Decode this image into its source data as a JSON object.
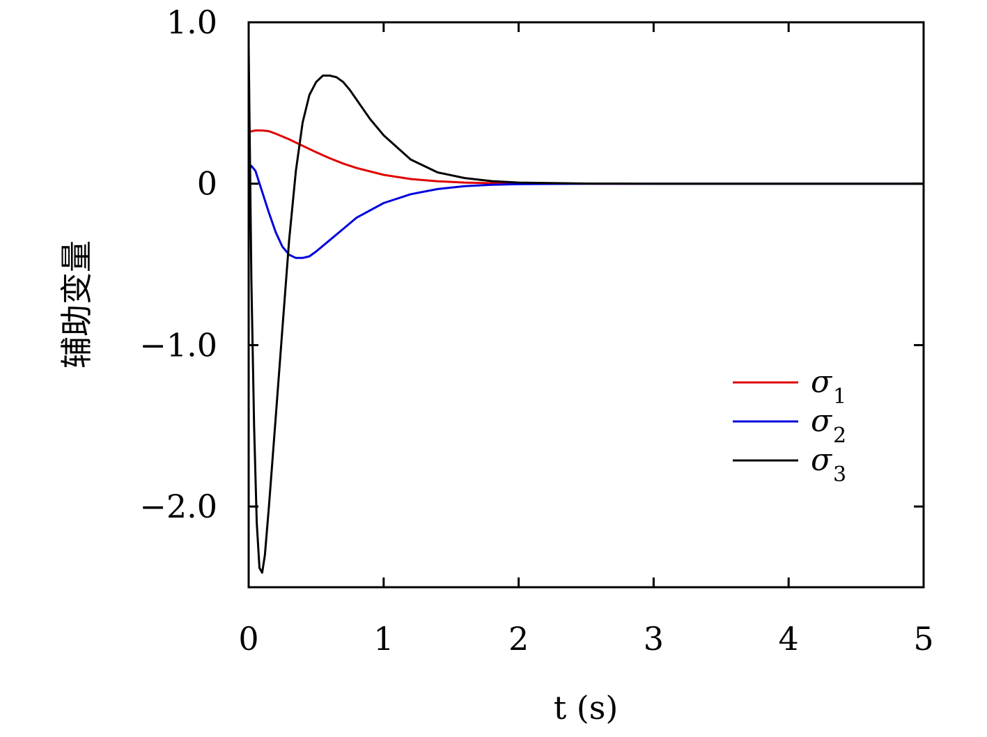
{
  "chart_data": {
    "type": "line",
    "xlabel": "t (s)",
    "ylabel": "辅助变量",
    "xlim": [
      0,
      5
    ],
    "ylim": [
      -2.5,
      1.0
    ],
    "xticks": [
      0,
      1,
      2,
      3,
      4,
      5
    ],
    "xtick_labels": [
      "0",
      "1",
      "2",
      "3",
      "4",
      "5"
    ],
    "yticks": [
      1.0,
      0,
      -1.0,
      -2.0
    ],
    "ytick_labels": [
      "1.0",
      "0",
      "−1.0",
      "−2.0"
    ],
    "grid": false,
    "legend_position": "right",
    "series": [
      {
        "name": "σ1",
        "color": "#e00000",
        "x": [
          0,
          0.05,
          0.1,
          0.15,
          0.2,
          0.3,
          0.4,
          0.5,
          0.6,
          0.7,
          0.8,
          1.0,
          1.2,
          1.4,
          1.6,
          1.8,
          2.0,
          2.5,
          3.0,
          4.0,
          5.0
        ],
        "y": [
          0.32,
          0.33,
          0.33,
          0.325,
          0.31,
          0.275,
          0.235,
          0.195,
          0.158,
          0.125,
          0.097,
          0.055,
          0.029,
          0.015,
          0.007,
          0.003,
          0.001,
          0.0,
          0.0,
          0.0,
          0.0
        ]
      },
      {
        "name": "σ2",
        "color": "#0000dd",
        "x": [
          0,
          0.02,
          0.05,
          0.1,
          0.15,
          0.2,
          0.25,
          0.3,
          0.35,
          0.4,
          0.45,
          0.5,
          0.6,
          0.7,
          0.8,
          1.0,
          1.2,
          1.4,
          1.6,
          1.8,
          2.0,
          2.5,
          3.0,
          4.0,
          5.0
        ],
        "y": [
          0.08,
          0.11,
          0.08,
          -0.05,
          -0.18,
          -0.3,
          -0.39,
          -0.44,
          -0.46,
          -0.46,
          -0.45,
          -0.42,
          -0.35,
          -0.28,
          -0.21,
          -0.12,
          -0.065,
          -0.033,
          -0.015,
          -0.007,
          -0.003,
          0.0,
          0.0,
          0.0,
          0.0
        ]
      },
      {
        "name": "σ3",
        "color": "#000000",
        "x": [
          0,
          0.02,
          0.04,
          0.06,
          0.08,
          0.1,
          0.12,
          0.15,
          0.2,
          0.25,
          0.3,
          0.35,
          0.4,
          0.45,
          0.5,
          0.55,
          0.6,
          0.65,
          0.7,
          0.75,
          0.8,
          0.9,
          1.0,
          1.2,
          1.4,
          1.6,
          1.8,
          2.0,
          2.5,
          3.0,
          4.0,
          5.0
        ],
        "y": [
          0.85,
          -0.6,
          -1.5,
          -2.1,
          -2.38,
          -2.41,
          -2.3,
          -2.0,
          -1.45,
          -0.9,
          -0.35,
          0.08,
          0.38,
          0.55,
          0.63,
          0.67,
          0.67,
          0.66,
          0.63,
          0.58,
          0.52,
          0.4,
          0.3,
          0.15,
          0.07,
          0.035,
          0.016,
          0.007,
          0.001,
          0.0,
          0.0,
          0.0
        ]
      }
    ],
    "legend": [
      {
        "symbol": "σ",
        "sub": "1",
        "color": "#e00000"
      },
      {
        "symbol": "σ",
        "sub": "2",
        "color": "#0000dd"
      },
      {
        "symbol": "σ",
        "sub": "3",
        "color": "#000000"
      }
    ]
  }
}
